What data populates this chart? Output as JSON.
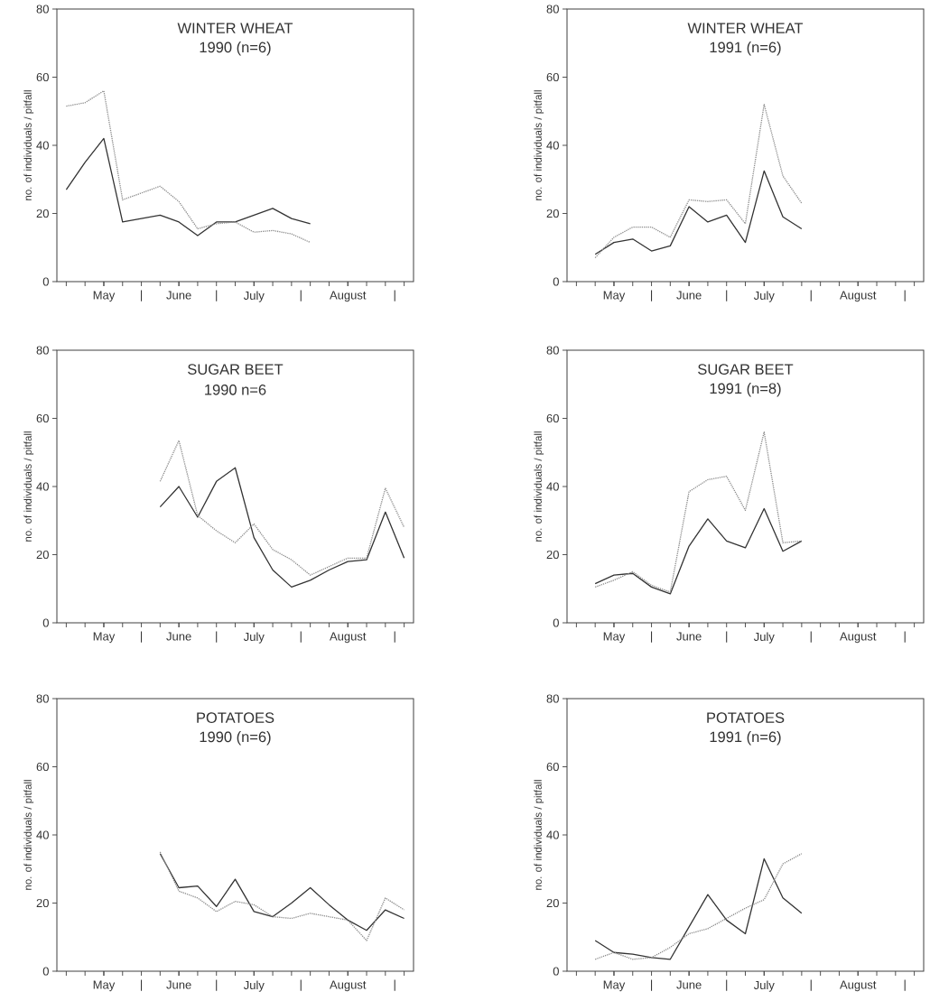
{
  "chart_data": [
    {
      "type": "line",
      "title": "WINTER WHEAT",
      "subtitle": "1990  (n=6)",
      "ylabel": "no. of individuals / pitfall",
      "categories": [
        null,
        null,
        "May",
        null,
        null,
        null,
        "June",
        null,
        null,
        null,
        "July",
        null,
        null,
        null,
        null,
        "August",
        null,
        null,
        null
      ],
      "annotations": [
        "|",
        "|",
        "|",
        "|"
      ],
      "series": [
        {
          "color": "#333333",
          "line_style": "solid",
          "values": [
            27,
            35,
            42,
            17.5,
            18.5,
            19.5,
            17.5,
            13.5,
            17.5,
            17.5,
            19.5,
            21.5,
            18.5,
            17,
            null,
            null,
            null,
            null,
            null
          ]
        },
        {
          "color": "#8c8c8c",
          "line_style": "dotted",
          "values": [
            51.5,
            52.5,
            56,
            24,
            26,
            28,
            23.5,
            15.5,
            17,
            17.5,
            14.5,
            15,
            14,
            11.5,
            null,
            null,
            null,
            null,
            null
          ]
        }
      ],
      "ylim": [
        0,
        80
      ],
      "yticks": [
        0,
        20,
        40,
        60,
        80
      ]
    },
    {
      "type": "line",
      "title": "WINTER WHEAT",
      "subtitle": "1991 (n=6)",
      "ylabel": "no. of individuals / pitfall",
      "categories": [
        null,
        null,
        "May",
        null,
        null,
        null,
        "June",
        null,
        null,
        null,
        "July",
        null,
        null,
        null,
        null,
        "August",
        null,
        null,
        null
      ],
      "annotations": [
        "|",
        "|",
        "|",
        "|"
      ],
      "series": [
        {
          "color": "#333333",
          "line_style": "solid",
          "values": [
            null,
            8,
            11.5,
            12.5,
            9,
            10.5,
            22,
            17.5,
            19.5,
            11.5,
            32.5,
            19,
            15.5,
            null,
            null,
            null,
            null,
            null,
            null
          ]
        },
        {
          "color": "#8c8c8c",
          "line_style": "dotted",
          "values": [
            null,
            7,
            13,
            16,
            16,
            13,
            24,
            23.5,
            24,
            17,
            52,
            31,
            23,
            null,
            null,
            null,
            null,
            null,
            null
          ]
        }
      ],
      "ylim": [
        0,
        80
      ],
      "yticks": [
        0,
        20,
        40,
        60,
        80
      ]
    },
    {
      "type": "line",
      "title": "SUGAR BEET",
      "subtitle": "1990 n=6",
      "ylabel": "no. of individuals / pitfall",
      "categories": [
        null,
        null,
        "May",
        null,
        null,
        null,
        "June",
        null,
        null,
        null,
        "July",
        null,
        null,
        null,
        null,
        "August",
        null,
        null,
        null
      ],
      "annotations": [
        "|",
        "|",
        "|",
        "|"
      ],
      "series": [
        {
          "color": "#333333",
          "line_style": "solid",
          "values": [
            null,
            null,
            null,
            null,
            null,
            34,
            40,
            31,
            41.5,
            45.5,
            25,
            15.5,
            10.5,
            12.5,
            15.5,
            18,
            18.5,
            32.5,
            19
          ]
        },
        {
          "color": "#8c8c8c",
          "line_style": "dotted",
          "values": [
            null,
            null,
            null,
            null,
            null,
            41.5,
            53.5,
            31.5,
            27,
            23.5,
            29,
            21.5,
            18.5,
            14,
            16.5,
            19,
            19,
            39.5,
            28
          ]
        }
      ],
      "ylim": [
        0,
        80
      ],
      "yticks": [
        0,
        20,
        40,
        60,
        80
      ]
    },
    {
      "type": "line",
      "title": "SUGAR BEET",
      "subtitle": "1991 (n=8)",
      "ylabel": "no. of individuals / pitfall",
      "categories": [
        null,
        null,
        "May",
        null,
        null,
        null,
        "June",
        null,
        null,
        null,
        "July",
        null,
        null,
        null,
        null,
        "August",
        null,
        null,
        null
      ],
      "annotations": [
        "|",
        "|",
        "|",
        "|"
      ],
      "series": [
        {
          "color": "#333333",
          "line_style": "solid",
          "values": [
            null,
            11.5,
            14,
            14.5,
            10.5,
            8.5,
            22.5,
            30.5,
            24,
            22,
            33.5,
            21,
            24,
            null,
            null,
            null,
            null,
            null,
            null
          ]
        },
        {
          "color": "#8c8c8c",
          "line_style": "dotted",
          "values": [
            null,
            10.5,
            12.5,
            15,
            11,
            9,
            38.5,
            42,
            43,
            33,
            56,
            23.5,
            24,
            null,
            null,
            null,
            null,
            null,
            null
          ]
        }
      ],
      "ylim": [
        0,
        80
      ],
      "yticks": [
        0,
        20,
        40,
        60,
        80
      ]
    },
    {
      "type": "line",
      "title": "POTATOES",
      "subtitle": "1990 (n=6)",
      "ylabel": "no. of individuals / pitfall",
      "categories": [
        null,
        null,
        "May",
        null,
        null,
        null,
        "June",
        null,
        null,
        null,
        "July",
        null,
        null,
        null,
        null,
        "August",
        null,
        null,
        null
      ],
      "annotations": [
        "|",
        "|",
        "|",
        "|"
      ],
      "series": [
        {
          "color": "#333333",
          "line_style": "solid",
          "values": [
            null,
            null,
            null,
            null,
            null,
            34.5,
            24.5,
            25,
            19,
            27,
            17.5,
            16,
            20,
            24.5,
            19.5,
            15,
            12,
            18,
            15.5
          ]
        },
        {
          "color": "#8c8c8c",
          "line_style": "dotted",
          "values": [
            null,
            null,
            null,
            null,
            null,
            35,
            23.5,
            21.5,
            17.5,
            20.5,
            19.5,
            16,
            15.5,
            17,
            16,
            15,
            9,
            21.5,
            18
          ]
        }
      ],
      "ylim": [
        0,
        80
      ],
      "yticks": [
        0,
        20,
        40,
        60,
        80
      ]
    },
    {
      "type": "line",
      "title": "POTATOES",
      "subtitle": "1991 (n=6)",
      "ylabel": "no. of individuals / pitfall",
      "categories": [
        null,
        null,
        "May",
        null,
        null,
        null,
        "June",
        null,
        null,
        null,
        "July",
        null,
        null,
        null,
        null,
        "August",
        null,
        null,
        null
      ],
      "annotations": [
        "|",
        "|",
        "|",
        "|"
      ],
      "series": [
        {
          "color": "#333333",
          "line_style": "solid",
          "values": [
            null,
            9,
            5.5,
            5,
            4,
            3.5,
            13,
            22.5,
            15,
            11,
            33,
            21.5,
            17,
            null,
            null,
            null,
            null,
            null,
            null
          ]
        },
        {
          "color": "#8c8c8c",
          "line_style": "dotted",
          "values": [
            null,
            3.5,
            5.5,
            3.5,
            4,
            7,
            11,
            12.5,
            15.5,
            18.5,
            21,
            31.5,
            34.5,
            null,
            null,
            null,
            null,
            null,
            null
          ]
        }
      ],
      "ylim": [
        0,
        80
      ],
      "yticks": [
        0,
        20,
        40,
        60,
        80
      ]
    }
  ]
}
